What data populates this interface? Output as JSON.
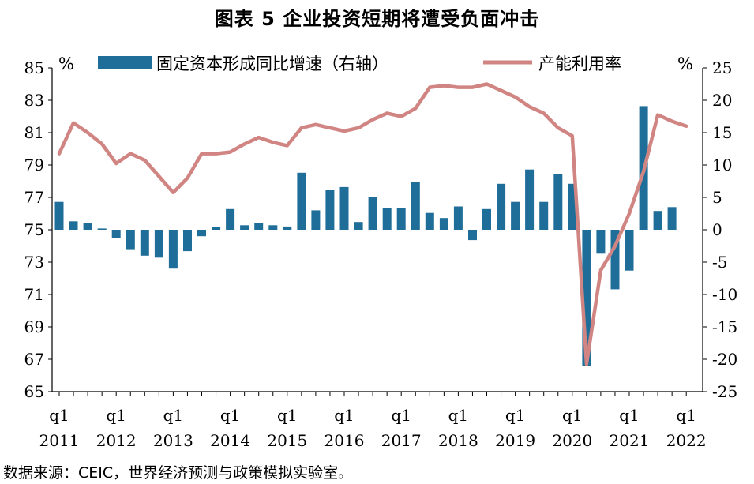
{
  "title": "图表 5 企业投资短期将遭受负面冲击",
  "source": "数据来源：CEIC，世界经济预测与政策模拟实验室。",
  "chart_data": {
    "type": "bar+line",
    "left_unit": "%",
    "right_unit": "%",
    "left_axis": {
      "min": 65,
      "max": 85,
      "ticks": [
        "85",
        "83",
        "81",
        "79",
        "77",
        "75",
        "73",
        "71",
        "69",
        "67",
        "65"
      ]
    },
    "right_axis": {
      "min": -25,
      "max": 25,
      "ticks": [
        "25",
        "20",
        "15",
        "10",
        "5",
        "0",
        "-5",
        "-10",
        "-15",
        "-20",
        "-25"
      ]
    },
    "x_labels": [
      {
        "q": "q1",
        "year": "2011",
        "index": 0
      },
      {
        "q": "q1",
        "year": "2012",
        "index": 4
      },
      {
        "q": "q1",
        "year": "2013",
        "index": 8
      },
      {
        "q": "q1",
        "year": "2014",
        "index": 12
      },
      {
        "q": "q1",
        "year": "2015",
        "index": 16
      },
      {
        "q": "q1",
        "year": "2016",
        "index": 20
      },
      {
        "q": "q1",
        "year": "2017",
        "index": 24
      },
      {
        "q": "q1",
        "year": "2018",
        "index": 28
      },
      {
        "q": "q1",
        "year": "2019",
        "index": 32
      },
      {
        "q": "q1",
        "year": "2020",
        "index": 36
      },
      {
        "q": "q1",
        "year": "2021",
        "index": 40
      },
      {
        "q": "q1",
        "year": "2022",
        "index": 44
      }
    ],
    "series": [
      {
        "name": "固定资本形成同比增速（右轴）",
        "type": "bar",
        "axis": "right",
        "color": "#1f6e99",
        "values": [
          4.3,
          1.3,
          1.0,
          0.2,
          -1.3,
          -3.0,
          -4.0,
          -4.3,
          -6.0,
          -3.3,
          -1.0,
          0.4,
          3.2,
          0.7,
          1.0,
          0.7,
          0.5,
          8.8,
          3.0,
          6.1,
          6.6,
          1.2,
          5.1,
          3.3,
          3.4,
          7.4,
          2.6,
          1.8,
          3.6,
          -1.6,
          3.2,
          7.1,
          4.3,
          9.3,
          4.3,
          8.6,
          7.1,
          -21.0,
          -3.7,
          -9.2,
          -6.3,
          19.1,
          2.9,
          3.5
        ]
      },
      {
        "name": "产能利用率",
        "type": "line",
        "axis": "left",
        "color": "#d08583",
        "values": [
          79.7,
          81.6,
          81.0,
          80.3,
          79.1,
          79.7,
          79.3,
          78.3,
          77.3,
          78.2,
          79.7,
          79.7,
          79.8,
          80.3,
          80.7,
          80.4,
          80.2,
          81.3,
          81.5,
          81.3,
          81.1,
          81.3,
          81.8,
          82.2,
          82.0,
          82.5,
          83.8,
          83.9,
          83.8,
          83.8,
          84.0,
          83.6,
          83.2,
          82.6,
          82.2,
          81.3,
          80.8,
          66.7,
          72.5,
          74.0,
          76.0,
          78.6,
          82.1,
          81.7,
          81.4
        ]
      }
    ]
  }
}
